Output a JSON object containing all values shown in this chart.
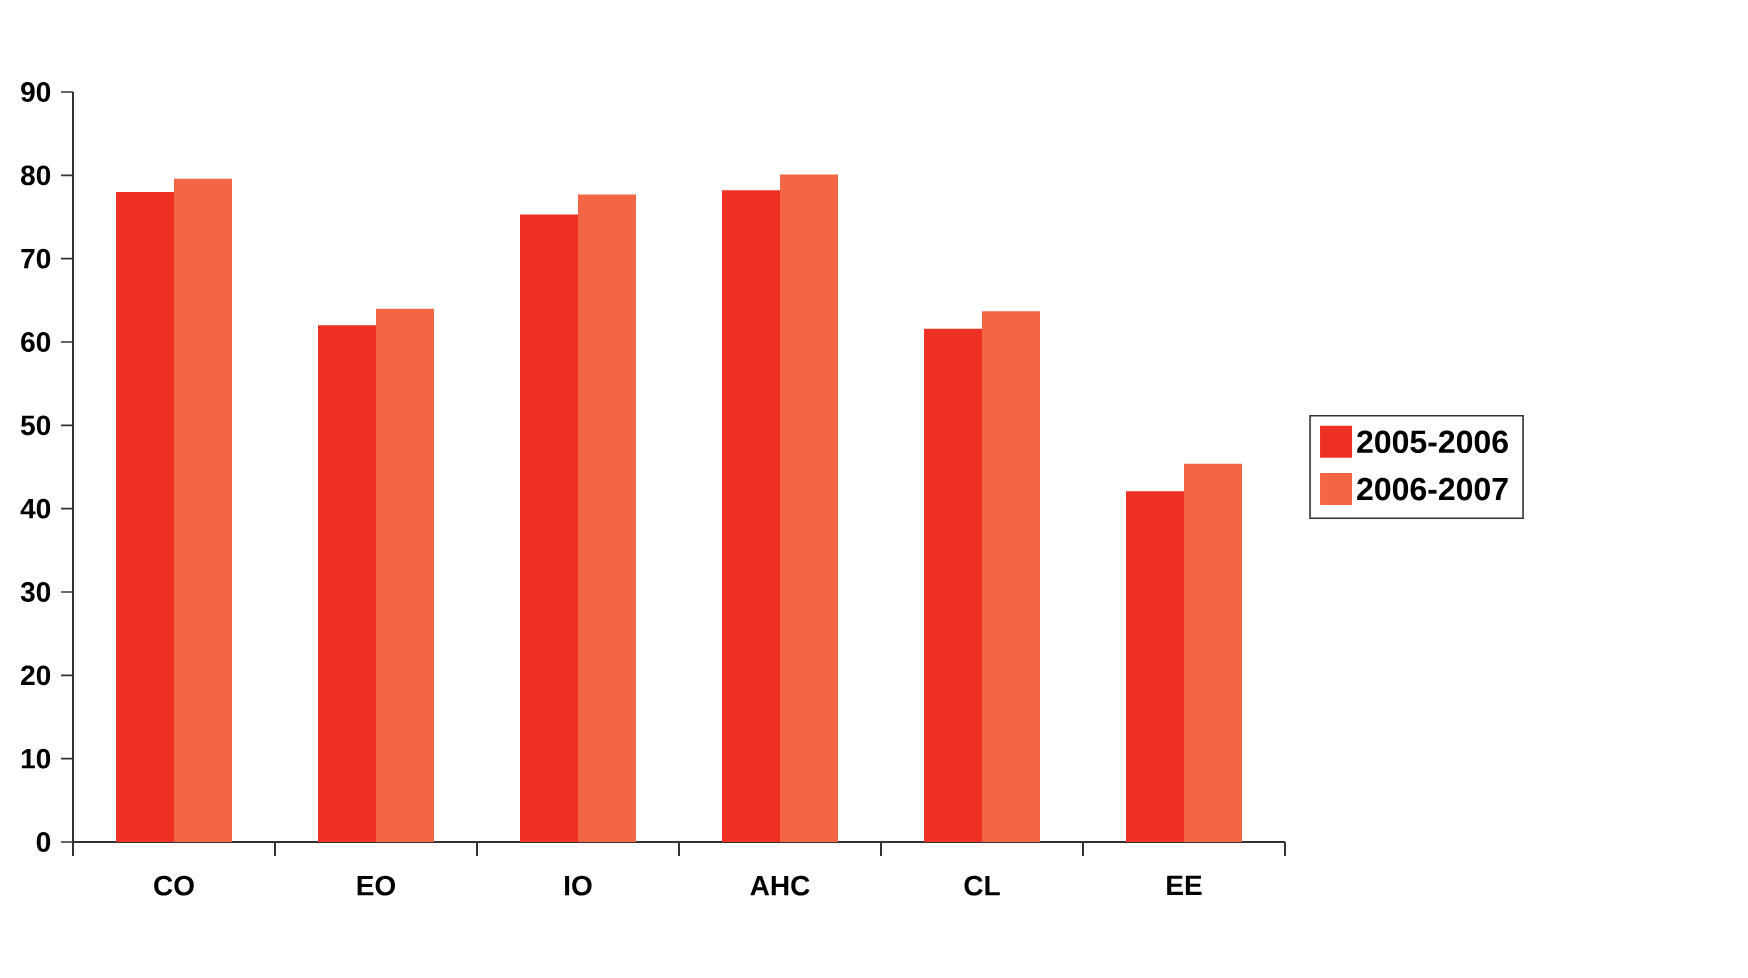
{
  "chart_data": {
    "type": "bar",
    "categories": [
      "CO",
      "EO",
      "IO",
      "AHC",
      "CL",
      "EE"
    ],
    "series": [
      {
        "name": "2005-2006",
        "color": "#ee3124",
        "values": [
          78,
          62,
          75.3,
          78.2,
          61.6,
          42.1
        ]
      },
      {
        "name": "2006-2007",
        "color": "#f26645",
        "values": [
          79.6,
          64,
          77.7,
          80.1,
          63.7,
          45.4
        ]
      }
    ],
    "ylim": [
      0,
      90
    ],
    "yticks": [
      0,
      10,
      20,
      30,
      40,
      50,
      60,
      70,
      80,
      90
    ],
    "grid": false,
    "legend": "right"
  }
}
